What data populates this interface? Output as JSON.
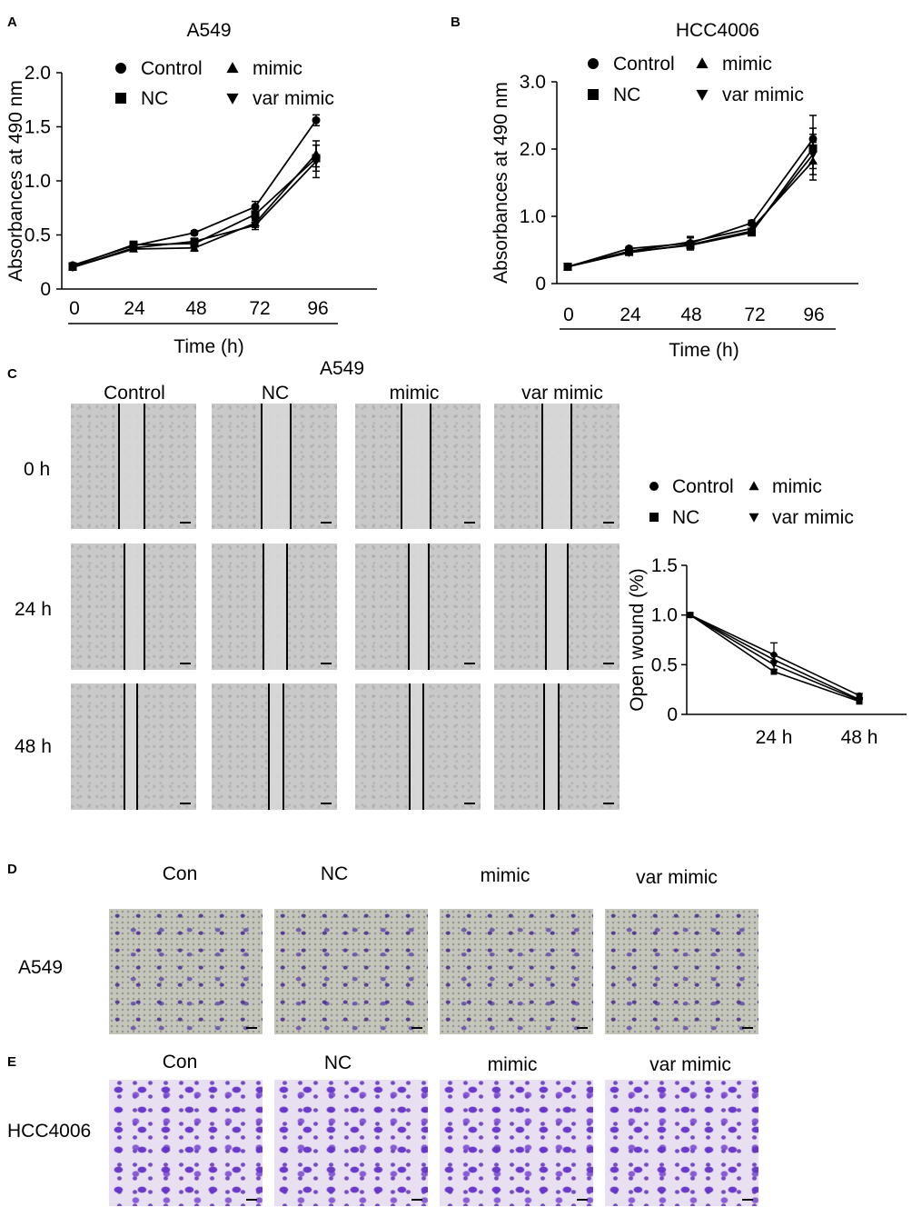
{
  "panels": {
    "A": {
      "letter": "A",
      "title": "A549"
    },
    "B": {
      "letter": "B",
      "title": "HCC4006"
    },
    "C": {
      "letter": "C",
      "title": "A549",
      "columns": [
        "Control",
        "NC",
        "mimic",
        "var mimic"
      ],
      "rows": [
        "0 h",
        "24 h",
        "48 h"
      ]
    },
    "D": {
      "letter": "D",
      "columns": [
        "Con",
        "NC",
        "mimic",
        "var mimic"
      ],
      "row": "A549"
    },
    "E": {
      "letter": "E",
      "columns": [
        "Con",
        "NC",
        "mimic",
        "var mimic"
      ],
      "row": "HCC4006"
    }
  },
  "legend": [
    {
      "name": "Control",
      "marker": "circle"
    },
    {
      "name": "mimic",
      "marker": "triangle-up"
    },
    {
      "name": "NC",
      "marker": "square"
    },
    {
      "name": "var mimic",
      "marker": "triangle-down"
    }
  ],
  "chart_data": [
    {
      "id": "A",
      "type": "line",
      "title": "A549",
      "xlabel": "Time (h)",
      "ylabel": "Absorbances  at  490 nm",
      "x": [
        0,
        24,
        48,
        72,
        96
      ],
      "x_ticks": [
        "0",
        "24",
        "48",
        "72",
        "96"
      ],
      "y_ticks": [
        "0",
        "0.5",
        "1.0",
        "1.5",
        "2.0"
      ],
      "ylim": [
        0,
        2.0
      ],
      "series": [
        {
          "name": "Control",
          "marker": "circle",
          "values": [
            0.22,
            0.4,
            0.52,
            0.76,
            1.56
          ],
          "error": [
            0.02,
            0.03,
            0.02,
            0.05,
            0.05
          ]
        },
        {
          "name": "NC",
          "marker": "square",
          "values": [
            0.21,
            0.41,
            0.42,
            0.69,
            1.21
          ],
          "error": [
            0.02,
            0.03,
            0.03,
            0.05,
            0.12
          ]
        },
        {
          "name": "mimic",
          "marker": "triangle-up",
          "values": [
            0.2,
            0.37,
            0.38,
            0.61,
            1.25
          ],
          "error": [
            0.02,
            0.02,
            0.03,
            0.04,
            0.12
          ]
        },
        {
          "name": "var mimic",
          "marker": "triangle-down",
          "values": [
            0.2,
            0.38,
            0.44,
            0.59,
            1.18
          ],
          "error": [
            0.02,
            0.02,
            0.03,
            0.04,
            0.15
          ]
        }
      ]
    },
    {
      "id": "B",
      "type": "line",
      "title": "HCC4006",
      "xlabel": "Time (h)",
      "ylabel": "Absorbances  at  490 nm",
      "x": [
        0,
        24,
        48,
        72,
        96
      ],
      "x_ticks": [
        "0",
        "24",
        "48",
        "72",
        "96"
      ],
      "y_ticks": [
        "0",
        "1.0",
        "2.0",
        "3.0"
      ],
      "ylim": [
        0,
        3.0
      ],
      "series": [
        {
          "name": "Control",
          "marker": "circle",
          "values": [
            0.25,
            0.52,
            0.6,
            0.9,
            2.15
          ],
          "error": [
            0.02,
            0.03,
            0.1,
            0.04,
            0.35
          ]
        },
        {
          "name": "NC",
          "marker": "square",
          "values": [
            0.25,
            0.47,
            0.57,
            0.76,
            2.01
          ],
          "error": [
            0.02,
            0.03,
            0.05,
            0.04,
            0.3
          ]
        },
        {
          "name": "mimic",
          "marker": "triangle-up",
          "values": [
            0.25,
            0.48,
            0.62,
            0.82,
            1.82
          ],
          "error": [
            0.02,
            0.03,
            0.06,
            0.04,
            0.28
          ]
        },
        {
          "name": "var mimic",
          "marker": "triangle-down",
          "values": [
            0.25,
            0.46,
            0.58,
            0.78,
            1.92
          ],
          "error": [
            0.02,
            0.03,
            0.05,
            0.04,
            0.3
          ]
        }
      ]
    },
    {
      "id": "C",
      "type": "line",
      "title": "",
      "xlabel": "",
      "ylabel": "Open wound (%)",
      "x": [
        "0 h",
        "24 h",
        "48 h"
      ],
      "x_ticks": [
        "",
        "24 h",
        "48 h"
      ],
      "y_ticks": [
        "0",
        "0.5",
        "1.0",
        "1.5"
      ],
      "ylim": [
        0,
        1.5
      ],
      "series": [
        {
          "name": "Control",
          "marker": "circle",
          "values": [
            1.0,
            0.6,
            0.19
          ],
          "error": [
            0.0,
            0.12,
            0.02
          ]
        },
        {
          "name": "NC",
          "marker": "square",
          "values": [
            1.0,
            0.43,
            0.13
          ],
          "error": [
            0.0,
            0.02,
            0.02
          ]
        },
        {
          "name": "mimic",
          "marker": "triangle-up",
          "values": [
            1.0,
            0.55,
            0.15
          ],
          "error": [
            0.0,
            0.05,
            0.02
          ]
        },
        {
          "name": "var mimic",
          "marker": "triangle-down",
          "values": [
            1.0,
            0.5,
            0.14
          ],
          "error": [
            0.0,
            0.04,
            0.02
          ]
        }
      ]
    }
  ]
}
